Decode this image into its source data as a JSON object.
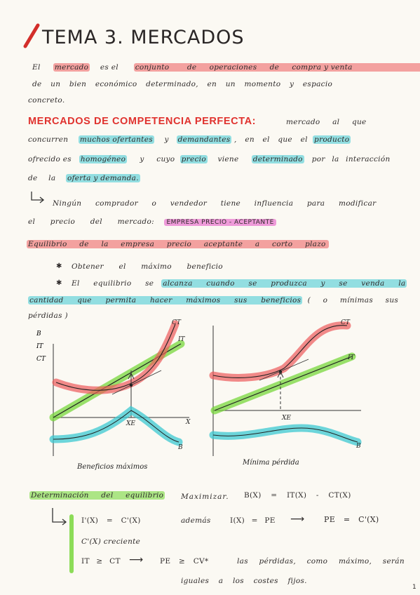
{
  "title": "TEMA 3. MERCADOS",
  "intro": {
    "l1_a": "El",
    "l1_hl": "mercado",
    "l1_b": "es el",
    "l1_hl2": "conjunto",
    "l1_c": "de",
    "l1_hl3": "operaciones",
    "l1_d": "de",
    "l1_hl4": "compra y venta",
    "l2": "de un bien económico determinado, en un momento y espacio",
    "l3": "concreto."
  },
  "mcp": {
    "heading": "MERCADOS DE COMPETENCIA PERFECTA:",
    "l1_a": "mercado al que",
    "l2_a": "concurren",
    "l2_hl1": "muchos ofertantes",
    "l2_b": "y",
    "l2_hl2": "demandantes",
    "l2_c": ", en el que el",
    "l2_hl3": "producto",
    "l3_a": "ofrecido es",
    "l3_hl1": "homogéneo",
    "l3_b": "y cuyo",
    "l3_hl2": "precio",
    "l3_c": "viene",
    "l3_hl3": "determinado",
    "l3_d": "por la interacción",
    "l4_a": "de la",
    "l4_hl": "oferta y demanda.",
    "arrow_a": "Ningún comprador o vendedor tiene influencia para modificar",
    "arrow_b": "el precio del mercado:",
    "arrow_hl": "EMPRESA PRECIO - ACEPTANTE"
  },
  "equilibrio": {
    "heading": "Equilibrio de la empresa precio aceptante a corto plazo",
    "b1": "Obtener el máximo beneficio",
    "b2_a": "El equilibrio se",
    "b2_hl": "alcanza cuando se produzca y se venda la",
    "b3_hl": "cantidad que permita hacer máximos sus beneficios",
    "b3_b": "( o mínimas sus",
    "b4": "pérdidas )"
  },
  "graphs": {
    "left": {
      "y_labels": [
        "B",
        "IT",
        "CT"
      ],
      "ct_label": "CT",
      "it_label": "IT",
      "xe_label": "XE",
      "x_label": "X",
      "b_label": "B",
      "caption": "Beneficios máximos"
    },
    "right": {
      "ct_label": "CT",
      "it_label": "IT",
      "xe_label": "XE",
      "b_label": "B",
      "caption": "Mínima pérdida"
    }
  },
  "determinacion": {
    "heading": "Determinación del equilibrio",
    "maximizar": "Maximizar.",
    "formula_b": "B(X) = IT(X) - CT(X)",
    "c1": "I'(X) = C'(X)",
    "ademas": "además",
    "c1b": "I(X) = PE",
    "arrow": "⟶",
    "c1c": "PE = C'(X)",
    "c2": "C'(X) creciente",
    "c3": "IT ≥ CT",
    "c3b": "PE ≥ CV*",
    "c3c": "las pérdidas, como máximo, serán",
    "c4": "iguales a los costes fijos."
  },
  "page_number": "1",
  "colors": {
    "pink": "#ec5a5a",
    "cyan": "#3cc8d2",
    "green": "#78d73c",
    "magenta": "#e65ac8",
    "red_heading": "#e0322e"
  }
}
